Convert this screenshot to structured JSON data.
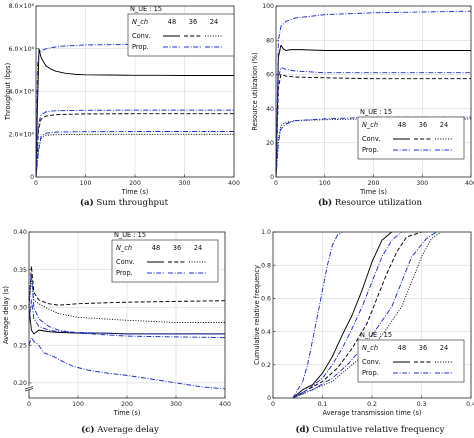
{
  "chart_data": [
    {
      "id": "a",
      "type": "line",
      "caption_letter": "(a)",
      "caption_text": "Sum throughput",
      "xlabel": "Time (s)",
      "ylabel": "Throughput (bps)",
      "xlim": [
        0,
        400
      ],
      "ylim": [
        0,
        8000000
      ],
      "xticks": [
        0,
        100,
        200,
        300,
        400
      ],
      "xtick_labels": [
        "0",
        "100",
        "200",
        "300",
        "400"
      ],
      "yticks": [
        0,
        2000000,
        4000000,
        6000000,
        8000000
      ],
      "ytick_labels": [
        "0",
        "2.0×10⁶",
        "4.0×10⁶",
        "6.0×10⁶",
        "8.0×10⁶"
      ],
      "legend": {
        "placement": "top-right",
        "nue_label": "N_UE : 15",
        "nch_label": "N_ch",
        "nch_values": [
          "48",
          "36",
          "24"
        ],
        "rows": [
          "Conv.",
          "Prop."
        ]
      },
      "series": [
        {
          "group": "Conv.",
          "nch": "48",
          "style": "solid",
          "color": "#000000",
          "x": [
            0,
            3,
            6,
            10,
            15,
            20,
            30,
            40,
            50,
            60,
            70,
            80,
            100,
            150,
            200,
            250,
            300,
            350,
            400
          ],
          "y": [
            0,
            3400000,
            6000000,
            5600000,
            5400000,
            5200000,
            5050000,
            4950000,
            4900000,
            4850000,
            4830000,
            4800000,
            4780000,
            4770000,
            4760000,
            4760000,
            4750000,
            4750000,
            4750000
          ]
        },
        {
          "group": "Conv.",
          "nch": "36",
          "style": "dashed",
          "color": "#000000",
          "x": [
            0,
            5,
            10,
            20,
            40,
            100,
            200,
            300,
            400
          ],
          "y": [
            0,
            2200000,
            2700000,
            2850000,
            2920000,
            2950000,
            2960000,
            2960000,
            2960000
          ]
        },
        {
          "group": "Conv.",
          "nch": "24",
          "style": "dotted",
          "color": "#000000",
          "x": [
            0,
            5,
            10,
            20,
            40,
            100,
            200,
            300,
            400
          ],
          "y": [
            0,
            1300000,
            1800000,
            1950000,
            1980000,
            2000000,
            2000000,
            2000000,
            2000000
          ]
        },
        {
          "group": "Prop.",
          "nch": "48",
          "style": "dashdot",
          "color": "#1f2fc4",
          "x": [
            0,
            3,
            6,
            10,
            20,
            30,
            50,
            80,
            100,
            150,
            200,
            250,
            300,
            350,
            400
          ],
          "y": [
            0,
            5200000,
            5800000,
            5900000,
            6000000,
            6050000,
            6120000,
            6150000,
            6180000,
            6190000,
            6200000,
            6200000,
            6200000,
            6200000,
            6200000
          ]
        },
        {
          "group": "Prop.",
          "nch": "36",
          "style": "dashdot",
          "color": "#1f2fc4",
          "x": [
            0,
            5,
            10,
            20,
            40,
            100,
            200,
            300,
            400
          ],
          "y": [
            0,
            2500000,
            2900000,
            3050000,
            3100000,
            3120000,
            3130000,
            3130000,
            3130000
          ]
        },
        {
          "group": "Prop.",
          "nch": "24",
          "style": "dashdot",
          "color": "#1f2fc4",
          "x": [
            0,
            5,
            10,
            20,
            40,
            100,
            200,
            300,
            400
          ],
          "y": [
            0,
            1200000,
            1900000,
            2050000,
            2100000,
            2120000,
            2130000,
            2130000,
            2130000
          ]
        }
      ]
    },
    {
      "id": "b",
      "type": "line",
      "caption_letter": "(b)",
      "caption_text": "Resource utilization",
      "xlabel": "Time (s)",
      "ylabel": "Resource utilization (%)",
      "xlim": [
        0,
        400
      ],
      "ylim": [
        0,
        100
      ],
      "xticks": [
        0,
        100,
        200,
        300,
        400
      ],
      "xtick_labels": [
        "0",
        "100",
        "200",
        "300",
        "400"
      ],
      "yticks": [
        0,
        20,
        40,
        60,
        80,
        100
      ],
      "ytick_labels": [
        "0",
        "20",
        "40",
        "60",
        "80",
        "100"
      ],
      "legend": {
        "placement": "bottom-right",
        "nue_label": "N_UE : 15",
        "nch_label": "N_ch",
        "nch_values": [
          "48",
          "36",
          "24"
        ],
        "rows": [
          "Conv.",
          "Prop."
        ]
      },
      "series": [
        {
          "group": "Conv.",
          "nch": "48",
          "style": "solid",
          "color": "#000000",
          "x": [
            0,
            5,
            10,
            15,
            20,
            30,
            50,
            100,
            200,
            300,
            400
          ],
          "y": [
            0,
            70,
            77,
            75,
            74,
            74.5,
            74.5,
            74,
            74,
            74,
            74
          ]
        },
        {
          "group": "Conv.",
          "nch": "36",
          "style": "dashed",
          "color": "#000000",
          "x": [
            0,
            5,
            10,
            20,
            40,
            100,
            200,
            300,
            400
          ],
          "y": [
            0,
            52,
            60,
            59,
            58.5,
            58,
            57.5,
            57.5,
            57.5
          ]
        },
        {
          "group": "Conv.",
          "nch": "24",
          "style": "dotted",
          "color": "#000000",
          "x": [
            0,
            5,
            10,
            20,
            40,
            100,
            200,
            300,
            400
          ],
          "y": [
            0,
            22,
            30,
            32,
            33,
            33.5,
            34,
            34,
            34
          ]
        },
        {
          "group": "Prop.",
          "nch": "48",
          "style": "dashdot",
          "color": "#1f2fc4",
          "x": [
            0,
            5,
            10,
            20,
            40,
            100,
            200,
            300,
            400
          ],
          "y": [
            0,
            80,
            88,
            91,
            93,
            95,
            96,
            96.5,
            97
          ]
        },
        {
          "group": "Prop.",
          "nch": "36",
          "style": "dashdot",
          "color": "#1f2fc4",
          "x": [
            0,
            5,
            10,
            20,
            40,
            100,
            200,
            300,
            400
          ],
          "y": [
            0,
            58,
            64,
            63,
            62,
            61,
            61,
            61,
            61
          ]
        },
        {
          "group": "Prop.",
          "nch": "24",
          "style": "dashdot",
          "color": "#1f2fc4",
          "x": [
            0,
            5,
            10,
            20,
            40,
            100,
            200,
            300,
            400
          ],
          "y": [
            0,
            20,
            28,
            31,
            33,
            34,
            35,
            35,
            35
          ]
        }
      ]
    },
    {
      "id": "c",
      "type": "line",
      "caption_letter": "(c)",
      "caption_text": "Average delay",
      "xlabel": "Time (s)",
      "ylabel": "Average delay (s)",
      "xlim": [
        0,
        400
      ],
      "ylim": [
        0.18,
        0.4
      ],
      "axis_break": true,
      "xticks": [
        0,
        100,
        200,
        300,
        400
      ],
      "xtick_labels": [
        "0",
        "100",
        "200",
        "300",
        "400"
      ],
      "yticks": [
        0.2,
        0.25,
        0.3,
        0.35,
        0.4
      ],
      "ytick_labels": [
        "0.20",
        "0.25",
        "0.30",
        "0.35",
        "0.40"
      ],
      "legend": {
        "placement": "top-right",
        "nue_label": "N_UE : 15",
        "nch_label": "N_ch",
        "nch_values": [
          "48",
          "36",
          "24"
        ],
        "rows": [
          "Conv.",
          "Prop."
        ]
      },
      "series": [
        {
          "group": "Conv.",
          "nch": "48",
          "style": "solid",
          "color": "#000000",
          "x": [
            0,
            5,
            10,
            20,
            40,
            60,
            100,
            150,
            200,
            300,
            400
          ],
          "y": [
            0.3,
            0.27,
            0.265,
            0.27,
            0.268,
            0.267,
            0.266,
            0.266,
            0.265,
            0.265,
            0.265
          ]
        },
        {
          "group": "Conv.",
          "nch": "36",
          "style": "dashed",
          "color": "#000000",
          "x": [
            0,
            5,
            10,
            20,
            40,
            60,
            100,
            150,
            200,
            300,
            400
          ],
          "y": [
            0.3,
            0.355,
            0.32,
            0.31,
            0.305,
            0.303,
            0.305,
            0.306,
            0.307,
            0.308,
            0.309
          ]
        },
        {
          "group": "Conv.",
          "nch": "24",
          "style": "dotted",
          "color": "#000000",
          "x": [
            0,
            5,
            10,
            20,
            40,
            60,
            100,
            150,
            200,
            300,
            400
          ],
          "y": [
            0.3,
            0.34,
            0.31,
            0.305,
            0.298,
            0.292,
            0.287,
            0.285,
            0.283,
            0.28,
            0.28
          ]
        },
        {
          "group": "Prop.",
          "nch": "48",
          "style": "dashdot",
          "color": "#1f2fc4",
          "x": [
            0,
            5,
            10,
            20,
            30,
            50,
            70,
            90,
            120,
            160,
            200,
            250,
            300,
            350,
            400
          ],
          "y": [
            0.25,
            0.26,
            0.255,
            0.25,
            0.24,
            0.235,
            0.228,
            0.222,
            0.217,
            0.213,
            0.21,
            0.205,
            0.2,
            0.195,
            0.192
          ]
        },
        {
          "group": "Prop.",
          "nch": "36",
          "style": "dashdot",
          "color": "#1f2fc4",
          "x": [
            0,
            5,
            10,
            20,
            40,
            60,
            100,
            150,
            200,
            300,
            400
          ],
          "y": [
            0.31,
            0.345,
            0.3,
            0.285,
            0.275,
            0.27,
            0.266,
            0.264,
            0.262,
            0.261,
            0.26
          ]
        },
        {
          "group": "Prop.",
          "nch": "24",
          "style": "dashdot",
          "color": "#1f2fc4",
          "x": [
            0,
            5,
            10,
            20,
            40,
            60,
            100,
            150,
            200,
            300,
            400
          ],
          "y": [
            0.28,
            0.31,
            0.285,
            0.275,
            0.27,
            0.268,
            0.267,
            0.266,
            0.265,
            0.265,
            0.265
          ]
        }
      ]
    },
    {
      "id": "d",
      "type": "line",
      "caption_letter": "(d)",
      "caption_text": "Cumulative relative frequency",
      "xlabel": "Average transmission time (s)",
      "ylabel": "Cumulative relative frequency",
      "xlim": [
        0,
        0.4
      ],
      "ylim": [
        0,
        1.0
      ],
      "xticks": [
        0,
        0.1,
        0.2,
        0.3,
        0.4
      ],
      "xtick_labels": [
        "0",
        "0.1",
        "0.2",
        "0.3",
        "0.4"
      ],
      "yticks": [
        0,
        0.2,
        0.4,
        0.6,
        0.8,
        1.0
      ],
      "ytick_labels": [
        "0",
        "0.2",
        "0.4",
        "0.6",
        "0.8",
        "1.0"
      ],
      "legend": {
        "placement": "bottom-right",
        "nue_label": "N_UE : 15",
        "nch_label": "N_ch",
        "nch_values": [
          "48",
          "36",
          "24"
        ],
        "rows": [
          "Conv.",
          "Prop."
        ]
      },
      "series": [
        {
          "group": "Conv.",
          "nch": "48",
          "style": "solid",
          "color": "#000000",
          "x": [
            0.04,
            0.06,
            0.08,
            0.1,
            0.12,
            0.14,
            0.16,
            0.18,
            0.2,
            0.22,
            0.24
          ],
          "y": [
            0,
            0.05,
            0.08,
            0.15,
            0.25,
            0.38,
            0.5,
            0.65,
            0.82,
            0.95,
            1.0
          ]
        },
        {
          "group": "Conv.",
          "nch": "36",
          "style": "dashed",
          "color": "#000000",
          "x": [
            0.04,
            0.07,
            0.1,
            0.13,
            0.16,
            0.19,
            0.21,
            0.23,
            0.25,
            0.27,
            0.3
          ],
          "y": [
            0,
            0.05,
            0.1,
            0.18,
            0.3,
            0.45,
            0.6,
            0.75,
            0.88,
            0.97,
            1.0
          ]
        },
        {
          "group": "Conv.",
          "nch": "24",
          "style": "dotted",
          "color": "#000000",
          "x": [
            0.04,
            0.08,
            0.12,
            0.16,
            0.2,
            0.23,
            0.26,
            0.28,
            0.3,
            0.32,
            0.34
          ],
          "y": [
            0,
            0.05,
            0.1,
            0.2,
            0.3,
            0.42,
            0.55,
            0.7,
            0.85,
            0.96,
            1.0
          ]
        },
        {
          "group": "Prop.",
          "nch": "48",
          "style": "dashdot",
          "color": "#1f2fc4",
          "x": [
            0.04,
            0.05,
            0.06,
            0.07,
            0.08,
            0.09,
            0.1,
            0.11,
            0.12,
            0.13,
            0.14
          ],
          "y": [
            0,
            0.05,
            0.1,
            0.2,
            0.35,
            0.5,
            0.65,
            0.8,
            0.92,
            0.98,
            1.0
          ]
        },
        {
          "group": "Prop.",
          "nch": "36",
          "style": "dashdot",
          "color": "#1f2fc4",
          "x": [
            0.04,
            0.07,
            0.1,
            0.12,
            0.14,
            0.16,
            0.18,
            0.2,
            0.22,
            0.24,
            0.26
          ],
          "y": [
            0,
            0.05,
            0.12,
            0.2,
            0.3,
            0.42,
            0.55,
            0.7,
            0.85,
            0.95,
            1.0
          ]
        },
        {
          "group": "Prop.",
          "nch": "24",
          "style": "dashdot",
          "color": "#1f2fc4",
          "x": [
            0.04,
            0.08,
            0.12,
            0.15,
            0.18,
            0.21,
            0.24,
            0.26,
            0.28,
            0.31,
            0.33
          ],
          "y": [
            0,
            0.05,
            0.12,
            0.2,
            0.3,
            0.42,
            0.55,
            0.7,
            0.85,
            0.96,
            1.0
          ]
        }
      ]
    }
  ],
  "colors": {
    "conv": "#000000",
    "prop": "#1f2fc4"
  }
}
